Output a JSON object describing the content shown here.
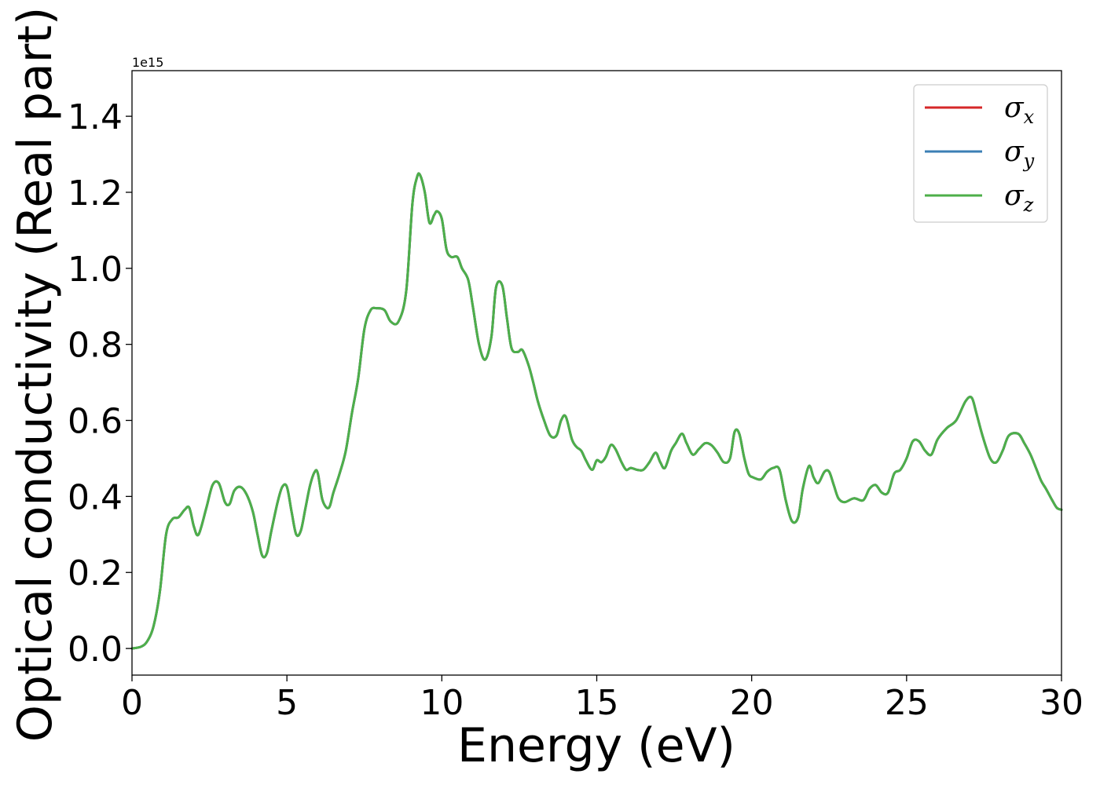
{
  "chart_data": {
    "type": "line",
    "title": "",
    "xlabel": "Energy (eV)",
    "ylabel": "Optical conductivity (Real part)",
    "y_offset_text": "1e15",
    "xlim": [
      0,
      30
    ],
    "ylim": [
      -0.07,
      1.52
    ],
    "x_ticks": [
      0,
      5,
      10,
      15,
      20,
      25,
      30
    ],
    "x_tick_labels": [
      "0",
      "5",
      "10",
      "15",
      "20",
      "25",
      "30"
    ],
    "y_ticks": [
      0.0,
      0.2,
      0.4,
      0.6,
      0.8,
      1.0,
      1.2,
      1.4
    ],
    "y_tick_labels": [
      "0.0",
      "0.2",
      "0.4",
      "0.6",
      "0.8",
      "1.0",
      "1.2",
      "1.4"
    ],
    "grid": false,
    "legend_position": "top-right",
    "x": [
      0,
      0.3,
      0.5,
      0.7,
      0.9,
      1.1,
      1.3,
      1.5,
      1.7,
      1.85,
      2.0,
      2.15,
      2.4,
      2.6,
      2.8,
      3.0,
      3.15,
      3.3,
      3.5,
      3.7,
      3.9,
      4.05,
      4.2,
      4.35,
      4.5,
      4.7,
      4.85,
      5.0,
      5.15,
      5.3,
      5.45,
      5.6,
      5.75,
      5.9,
      6.0,
      6.15,
      6.35,
      6.5,
      6.7,
      6.9,
      7.1,
      7.3,
      7.5,
      7.7,
      7.9,
      8.15,
      8.35,
      8.6,
      8.85,
      9.05,
      9.2,
      9.3,
      9.45,
      9.6,
      9.75,
      9.85,
      10.0,
      10.15,
      10.3,
      10.5,
      10.65,
      10.85,
      11.0,
      11.2,
      11.4,
      11.6,
      11.75,
      11.95,
      12.1,
      12.25,
      12.45,
      12.6,
      12.8,
      12.95,
      13.1,
      13.3,
      13.5,
      13.7,
      13.85,
      14.0,
      14.2,
      14.35,
      14.5,
      14.65,
      14.85,
      15.0,
      15.15,
      15.3,
      15.45,
      15.6,
      15.8,
      15.95,
      16.1,
      16.3,
      16.5,
      16.7,
      16.9,
      17.05,
      17.2,
      17.4,
      17.55,
      17.75,
      17.9,
      18.1,
      18.3,
      18.5,
      18.7,
      18.9,
      19.1,
      19.3,
      19.45,
      19.6,
      19.75,
      19.9,
      20.05,
      20.3,
      20.5,
      20.7,
      20.9,
      21.1,
      21.3,
      21.5,
      21.65,
      21.85,
      22.0,
      22.15,
      22.35,
      22.5,
      22.65,
      22.8,
      23.0,
      23.3,
      23.6,
      23.8,
      24.0,
      24.2,
      24.4,
      24.6,
      24.8,
      25.0,
      25.2,
      25.4,
      25.6,
      25.8,
      26.0,
      26.3,
      26.6,
      26.9,
      27.1,
      27.25,
      27.45,
      27.7,
      27.9,
      28.1,
      28.3,
      28.6,
      28.8,
      29.0,
      29.2,
      29.35,
      29.5,
      29.7,
      29.85,
      30.0
    ],
    "series": [
      {
        "name": "σ",
        "name_subscript": "x",
        "color": "#d62728",
        "values": [
          0.0,
          0.005,
          0.02,
          0.06,
          0.15,
          0.3,
          0.34,
          0.345,
          0.365,
          0.37,
          0.32,
          0.3,
          0.37,
          0.43,
          0.435,
          0.385,
          0.38,
          0.415,
          0.425,
          0.405,
          0.36,
          0.3,
          0.245,
          0.25,
          0.31,
          0.385,
          0.425,
          0.425,
          0.36,
          0.3,
          0.31,
          0.37,
          0.43,
          0.465,
          0.46,
          0.39,
          0.37,
          0.41,
          0.46,
          0.52,
          0.62,
          0.71,
          0.84,
          0.89,
          0.895,
          0.89,
          0.86,
          0.86,
          0.94,
          1.17,
          1.24,
          1.245,
          1.2,
          1.12,
          1.14,
          1.15,
          1.13,
          1.05,
          1.03,
          1.03,
          1.0,
          0.97,
          0.9,
          0.8,
          0.76,
          0.82,
          0.95,
          0.955,
          0.87,
          0.79,
          0.78,
          0.785,
          0.745,
          0.7,
          0.65,
          0.6,
          0.56,
          0.56,
          0.6,
          0.61,
          0.55,
          0.53,
          0.52,
          0.495,
          0.47,
          0.495,
          0.49,
          0.505,
          0.535,
          0.525,
          0.49,
          0.47,
          0.475,
          0.47,
          0.47,
          0.49,
          0.515,
          0.49,
          0.475,
          0.52,
          0.54,
          0.565,
          0.54,
          0.51,
          0.525,
          0.54,
          0.535,
          0.515,
          0.49,
          0.5,
          0.57,
          0.565,
          0.505,
          0.46,
          0.45,
          0.445,
          0.465,
          0.475,
          0.47,
          0.39,
          0.335,
          0.345,
          0.42,
          0.48,
          0.45,
          0.435,
          0.465,
          0.465,
          0.43,
          0.395,
          0.385,
          0.395,
          0.39,
          0.42,
          0.43,
          0.41,
          0.41,
          0.46,
          0.47,
          0.5,
          0.545,
          0.545,
          0.52,
          0.51,
          0.55,
          0.58,
          0.6,
          0.65,
          0.66,
          0.62,
          0.56,
          0.5,
          0.49,
          0.52,
          0.56,
          0.565,
          0.54,
          0.51,
          0.47,
          0.44,
          0.42,
          0.39,
          0.37,
          0.365
        ]
      },
      {
        "name": "σ",
        "name_subscript": "y",
        "color": "#3b7fb5",
        "values": [
          0.0,
          0.005,
          0.02,
          0.06,
          0.15,
          0.3,
          0.34,
          0.345,
          0.365,
          0.37,
          0.32,
          0.3,
          0.37,
          0.43,
          0.435,
          0.385,
          0.38,
          0.415,
          0.425,
          0.405,
          0.36,
          0.3,
          0.245,
          0.25,
          0.31,
          0.385,
          0.425,
          0.425,
          0.36,
          0.3,
          0.31,
          0.37,
          0.43,
          0.465,
          0.46,
          0.39,
          0.37,
          0.41,
          0.46,
          0.52,
          0.62,
          0.71,
          0.84,
          0.89,
          0.895,
          0.89,
          0.86,
          0.86,
          0.94,
          1.17,
          1.24,
          1.245,
          1.2,
          1.12,
          1.14,
          1.15,
          1.13,
          1.05,
          1.03,
          1.03,
          1.0,
          0.97,
          0.9,
          0.8,
          0.76,
          0.82,
          0.95,
          0.955,
          0.87,
          0.79,
          0.78,
          0.785,
          0.745,
          0.7,
          0.65,
          0.6,
          0.56,
          0.56,
          0.6,
          0.61,
          0.55,
          0.53,
          0.52,
          0.495,
          0.47,
          0.495,
          0.49,
          0.505,
          0.535,
          0.525,
          0.49,
          0.47,
          0.475,
          0.47,
          0.47,
          0.49,
          0.515,
          0.49,
          0.475,
          0.52,
          0.54,
          0.565,
          0.54,
          0.51,
          0.525,
          0.54,
          0.535,
          0.515,
          0.49,
          0.5,
          0.57,
          0.565,
          0.505,
          0.46,
          0.45,
          0.445,
          0.465,
          0.475,
          0.47,
          0.39,
          0.335,
          0.345,
          0.42,
          0.48,
          0.45,
          0.435,
          0.465,
          0.465,
          0.43,
          0.395,
          0.385,
          0.395,
          0.39,
          0.42,
          0.43,
          0.41,
          0.41,
          0.46,
          0.47,
          0.5,
          0.545,
          0.545,
          0.52,
          0.51,
          0.55,
          0.58,
          0.6,
          0.65,
          0.66,
          0.62,
          0.56,
          0.5,
          0.49,
          0.52,
          0.56,
          0.565,
          0.54,
          0.51,
          0.47,
          0.44,
          0.42,
          0.39,
          0.37,
          0.365
        ]
      },
      {
        "name": "σ",
        "name_subscript": "z",
        "color": "#4daf4a",
        "values": [
          0.0,
          0.005,
          0.02,
          0.06,
          0.15,
          0.3,
          0.34,
          0.345,
          0.365,
          0.37,
          0.32,
          0.3,
          0.37,
          0.43,
          0.435,
          0.385,
          0.38,
          0.415,
          0.425,
          0.405,
          0.36,
          0.3,
          0.245,
          0.25,
          0.31,
          0.385,
          0.425,
          0.425,
          0.36,
          0.3,
          0.31,
          0.37,
          0.43,
          0.465,
          0.46,
          0.39,
          0.37,
          0.41,
          0.46,
          0.52,
          0.62,
          0.71,
          0.84,
          0.89,
          0.895,
          0.89,
          0.86,
          0.86,
          0.94,
          1.17,
          1.24,
          1.245,
          1.2,
          1.12,
          1.14,
          1.15,
          1.13,
          1.05,
          1.03,
          1.03,
          1.0,
          0.97,
          0.9,
          0.8,
          0.76,
          0.82,
          0.95,
          0.955,
          0.87,
          0.79,
          0.78,
          0.785,
          0.745,
          0.7,
          0.65,
          0.6,
          0.56,
          0.56,
          0.6,
          0.61,
          0.55,
          0.53,
          0.52,
          0.495,
          0.47,
          0.495,
          0.49,
          0.505,
          0.535,
          0.525,
          0.49,
          0.47,
          0.475,
          0.47,
          0.47,
          0.49,
          0.515,
          0.49,
          0.475,
          0.52,
          0.54,
          0.565,
          0.54,
          0.51,
          0.525,
          0.54,
          0.535,
          0.515,
          0.49,
          0.5,
          0.57,
          0.565,
          0.505,
          0.46,
          0.45,
          0.445,
          0.465,
          0.475,
          0.47,
          0.39,
          0.335,
          0.345,
          0.42,
          0.48,
          0.45,
          0.435,
          0.465,
          0.465,
          0.43,
          0.395,
          0.385,
          0.395,
          0.39,
          0.42,
          0.43,
          0.41,
          0.41,
          0.46,
          0.47,
          0.5,
          0.545,
          0.545,
          0.52,
          0.51,
          0.55,
          0.58,
          0.6,
          0.65,
          0.66,
          0.62,
          0.56,
          0.5,
          0.49,
          0.52,
          0.56,
          0.565,
          0.54,
          0.51,
          0.47,
          0.44,
          0.42,
          0.39,
          0.37,
          0.365
        ]
      }
    ]
  }
}
